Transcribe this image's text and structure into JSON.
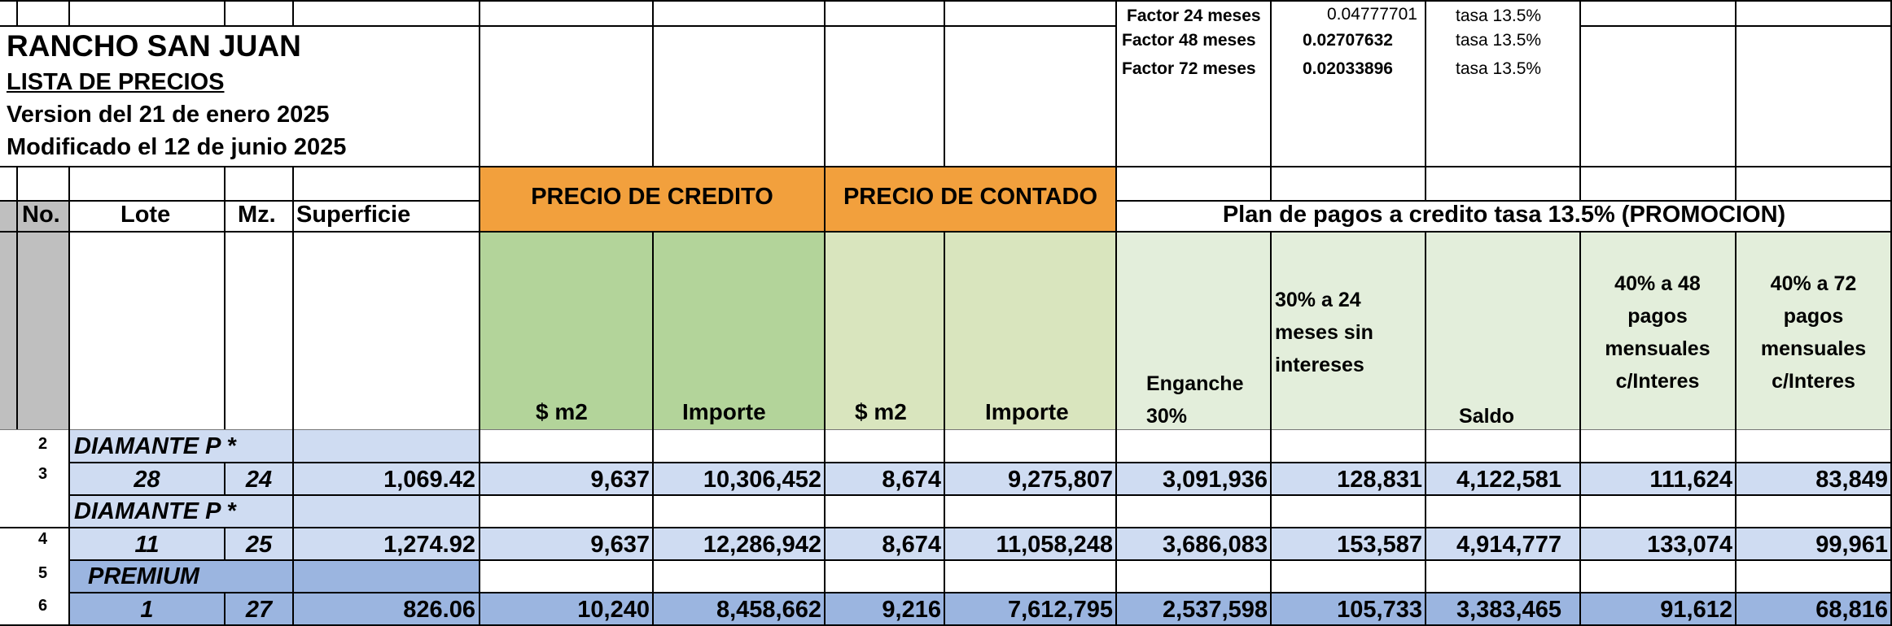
{
  "title": {
    "line1": "RANCHO SAN JUAN",
    "line2": "LISTA DE PRECIOS",
    "line3": "Version del 21 de enero 2025",
    "line4": "Modificado el 12 de junio 2025"
  },
  "factors": [
    {
      "label": "Factor 24 meses",
      "value": "0.04777701",
      "rate": "tasa 13.5%"
    },
    {
      "label": "Factor 48 meses",
      "value": "0.02707632",
      "rate": "tasa 13.5%"
    },
    {
      "label": "Factor 72 meses",
      "value": "0.02033896",
      "rate": "tasa 13.5%"
    }
  ],
  "headers": {
    "no": "No.",
    "lote": "Lote",
    "mz": "Mz.",
    "superficie": "Superficie",
    "precio_credito": "PRECIO DE CREDITO",
    "precio_contado": "PRECIO DE CONTADO",
    "plan": "Plan de pagos a credito tasa 13.5% (PROMOCION)",
    "m2_a": "$ m2",
    "importe_a": "Importe",
    "m2_b": "$ m2",
    "importe_b": "Importe",
    "enganche_1": "Enganche",
    "enganche_2": "30%",
    "p24_1": "30% a 24",
    "p24_2": "meses sin",
    "p24_3": "intereses",
    "saldo": "Saldo",
    "p48_1": "40% a 48",
    "p48_2": "pagos",
    "p48_3": "mensuales",
    "p48_4": "c/Interes",
    "p72_1": "40% a 72",
    "p72_2": "pagos",
    "p72_3": "mensuales",
    "p72_4": "c/Interes"
  },
  "row_numbers": [
    "2",
    "3",
    "4",
    "5",
    "6"
  ],
  "groups": [
    "DIAMANTE P *",
    "DIAMANTE P *",
    "PREMIUM"
  ],
  "rows": [
    {
      "lote": "28",
      "mz": "24",
      "superficie": "1,069.42",
      "credito_m2": "9,637",
      "credito_importe": "10,306,452",
      "contado_m2": "8,674",
      "contado_importe": "9,275,807",
      "enganche": "3,091,936",
      "p24": "128,831",
      "saldo": "4,122,581",
      "p48": "111,624",
      "p72": "83,849"
    },
    {
      "lote": "11",
      "mz": "25",
      "superficie": "1,274.92",
      "credito_m2": "9,637",
      "credito_importe": "12,286,942",
      "contado_m2": "8,674",
      "contado_importe": "11,058,248",
      "enganche": "3,686,083",
      "p24": "153,587",
      "saldo": "4,914,777",
      "p48": "133,074",
      "p72": "99,961"
    },
    {
      "lote": "1",
      "mz": "27",
      "superficie": "826.06",
      "credito_m2": "10,240",
      "credito_importe": "8,458,662",
      "contado_m2": "9,216",
      "contado_importe": "7,612,795",
      "enganche": "2,537,598",
      "p24": "105,733",
      "saldo": "3,383,465",
      "p48": "91,612",
      "p72": "68,816"
    }
  ],
  "colors": {
    "orange_header": "#F2A03D",
    "credit_green": "#B3D49A",
    "cash_green": "#D9E5BE",
    "plan_green": "#E3EEDB",
    "row_blue": "#CFDCF2",
    "premium_blue": "#9BB5E0",
    "side_gray": "#BFBFBF"
  }
}
